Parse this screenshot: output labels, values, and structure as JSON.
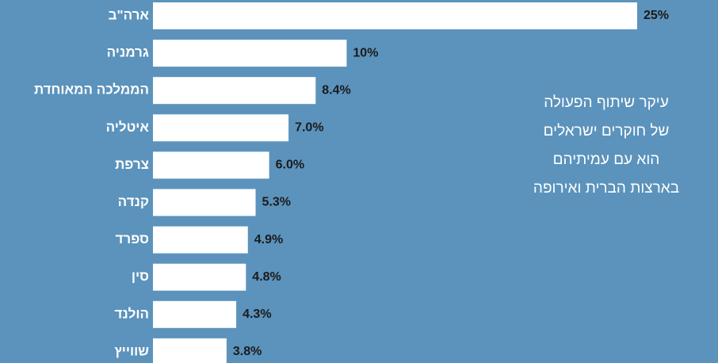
{
  "chart_data": {
    "type": "bar",
    "orientation": "horizontal",
    "categories": [
      "ארה\"ב",
      "גרמניה",
      "הממלכה המאוחדת",
      "איטליה",
      "צרפת",
      "קנדה",
      "ספרד",
      "סין",
      "הולנד",
      "שווייץ"
    ],
    "values": [
      25,
      10,
      8.4,
      7.0,
      6.0,
      5.3,
      4.9,
      4.8,
      4.3,
      3.8
    ],
    "value_labels": [
      "25%",
      "10%",
      "8.4%",
      "7.0%",
      "6.0%",
      "5.3%",
      "4.9%",
      "4.8%",
      "4.3%",
      "3.8%"
    ],
    "color": "#ffffff",
    "annotation": [
      "עיקר שיתוף הפעולה",
      "של חוקרים ישראלים",
      "הוא עם עמיתיהם",
      "בארצות הברית ואירופה"
    ]
  }
}
